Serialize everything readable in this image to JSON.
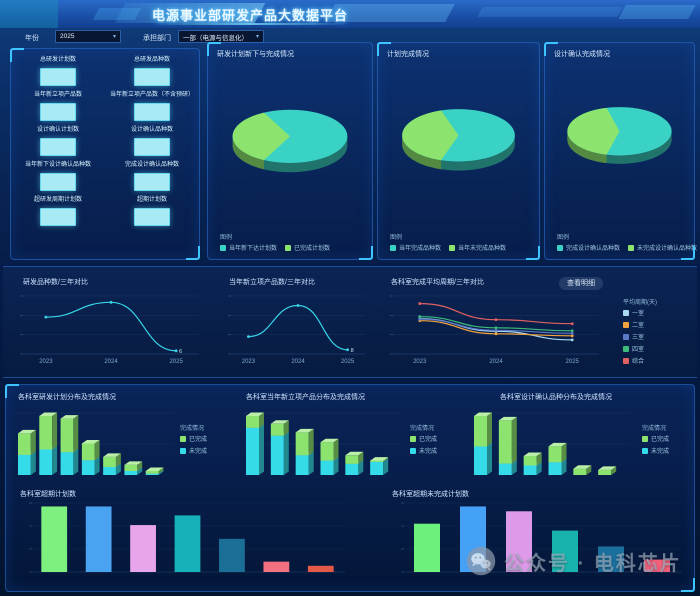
{
  "header": {
    "title": "电源事业部研发产品大数据平台"
  },
  "filters": {
    "year_label": "年份",
    "year_value": "2025",
    "dept_label": "承担部门",
    "dept_value": "一部（电源与信息化）"
  },
  "stats_panel": {
    "items": [
      {
        "label": "总研发计划数",
        "value": ""
      },
      {
        "label": "总研发品种数",
        "value": ""
      },
      {
        "label": "当年新立项产品数",
        "value": ""
      },
      {
        "label": "当年新立项产品数（不含预研）",
        "value": ""
      },
      {
        "label": "设计确认计划数",
        "value": ""
      },
      {
        "label": "设计确认品种数",
        "value": ""
      },
      {
        "label": "当年新下设计确认品种数",
        "value": ""
      },
      {
        "label": "完成设计确认品种数",
        "value": ""
      },
      {
        "label": "超研发周期计划数",
        "value": ""
      },
      {
        "label": "超期计划数",
        "value": ""
      }
    ]
  },
  "middle": {
    "detail_button": "查看明细"
  },
  "watermark": {
    "text": "公众号 · 电科芯片"
  },
  "chart_data": [
    {
      "id": "pie1",
      "type": "pie",
      "title": "研发计划新下与完成情况",
      "legend_title": "图例",
      "slices": [
        {
          "label": "当年新下达计划数",
          "value": 65,
          "color": "#3ad2c4"
        },
        {
          "label": "已完成计划数",
          "value": 35,
          "color": "#8ce46e"
        }
      ]
    },
    {
      "id": "pie2",
      "type": "pie",
      "title": "计划完成情况",
      "legend_title": "图例",
      "slices": [
        {
          "label": "当年完成品种数",
          "value": 60,
          "color": "#3ad2c4"
        },
        {
          "label": "当年未完成品种数",
          "value": 40,
          "color": "#8ce46e"
        }
      ]
    },
    {
      "id": "pie3",
      "type": "pie",
      "title": "设计确认完成情况",
      "legend_title": "图例",
      "slices": [
        {
          "label": "完成设计确认品种数",
          "value": 58,
          "color": "#3ad2c4"
        },
        {
          "label": "未完成设计确认品种数",
          "value": 42,
          "color": "#8ce46e"
        }
      ]
    },
    {
      "id": "line1",
      "type": "line",
      "title": "研发品种数/三年对比",
      "x": [
        "2023",
        "2024",
        "2025"
      ],
      "ylim": [
        0,
        110
      ],
      "label_last": true,
      "series": [
        {
          "name": "研发品种数",
          "color": "#38d4e6",
          "values": [
            70,
            98,
            6
          ]
        }
      ]
    },
    {
      "id": "line2",
      "type": "line",
      "title": "当年新立项产品数/三年对比",
      "x": [
        "2023",
        "2024",
        "2025"
      ],
      "ylim": [
        0,
        110
      ],
      "label_last": true,
      "series": [
        {
          "name": "新立项产品数",
          "color": "#38d4e6",
          "values": [
            33,
            92,
            8
          ]
        }
      ]
    },
    {
      "id": "line3",
      "type": "line",
      "title": "各科室完成平均周期/三年对比",
      "x": [
        "2023",
        "2024",
        "2025"
      ],
      "ylim": [
        0,
        115
      ],
      "legend_title": "平均周期(天)",
      "series": [
        {
          "name": "一室",
          "color": "#a7d8ef",
          "values": [
            70,
            45,
            28
          ]
        },
        {
          "name": "二室",
          "color": "#f2a23c",
          "values": [
            66,
            40,
            36
          ]
        },
        {
          "name": "三室",
          "color": "#5b79c9",
          "values": [
            69,
            47,
            41
          ]
        },
        {
          "name": "四室",
          "color": "#3dbb7a",
          "values": [
            74,
            52,
            46
          ]
        },
        {
          "name": "综合",
          "color": "#e06161",
          "values": [
            100,
            68,
            60
          ]
        }
      ]
    },
    {
      "id": "stack1",
      "type": "bar3d",
      "title": "各科室研发计划分布及完成情况",
      "legend_title": "完成情况",
      "series": [
        {
          "name": "已完成",
          "color": "#8ce46e",
          "values": [
            32,
            50,
            50,
            25,
            15,
            9,
            4
          ]
        },
        {
          "name": "未完成",
          "color": "#35dbe8",
          "values": [
            30,
            38,
            34,
            22,
            12,
            6,
            2
          ]
        }
      ]
    },
    {
      "id": "stack2",
      "type": "bar3d",
      "title": "各科室当年新立项产品分布及完成情况",
      "legend_title": "完成情况",
      "series": [
        {
          "name": "已完成",
          "color": "#8ce46e",
          "values": [
            18,
            18,
            35,
            28,
            13,
            2
          ]
        },
        {
          "name": "未完成",
          "color": "#35dbe8",
          "values": [
            72,
            60,
            30,
            22,
            17,
            20
          ]
        }
      ]
    },
    {
      "id": "stack3",
      "type": "bar3d",
      "title": "各科室设计确认品种分布及完成情况",
      "legend_title": "完成情况",
      "series": [
        {
          "name": "已完成",
          "color": "#8ce46e",
          "values": [
            48,
            68,
            15,
            25,
            10,
            8
          ]
        },
        {
          "name": "未完成",
          "color": "#35dbe8",
          "values": [
            45,
            18,
            15,
            20,
            0,
            0
          ]
        }
      ]
    },
    {
      "id": "bars1",
      "type": "bar",
      "title": "各科室超期计划数",
      "ylim": [
        0,
        100
      ],
      "values": [
        95,
        95,
        68,
        82,
        48,
        15,
        9
      ],
      "colors": [
        "#7df07f",
        "#4aa3f0",
        "#e7a6ec",
        "#16b2ba",
        "#1b6f96",
        "#f2707f",
        "#e25948"
      ]
    },
    {
      "id": "bars2",
      "type": "bar",
      "title": "各科室超期未完成计划数",
      "ylim": [
        0,
        100
      ],
      "values": [
        70,
        95,
        88,
        60,
        37,
        18
      ],
      "colors": [
        "#6ef07c",
        "#45a1f5",
        "#dd9ae8",
        "#17b3ac",
        "#1a6f9c",
        "#f0607a"
      ]
    }
  ]
}
